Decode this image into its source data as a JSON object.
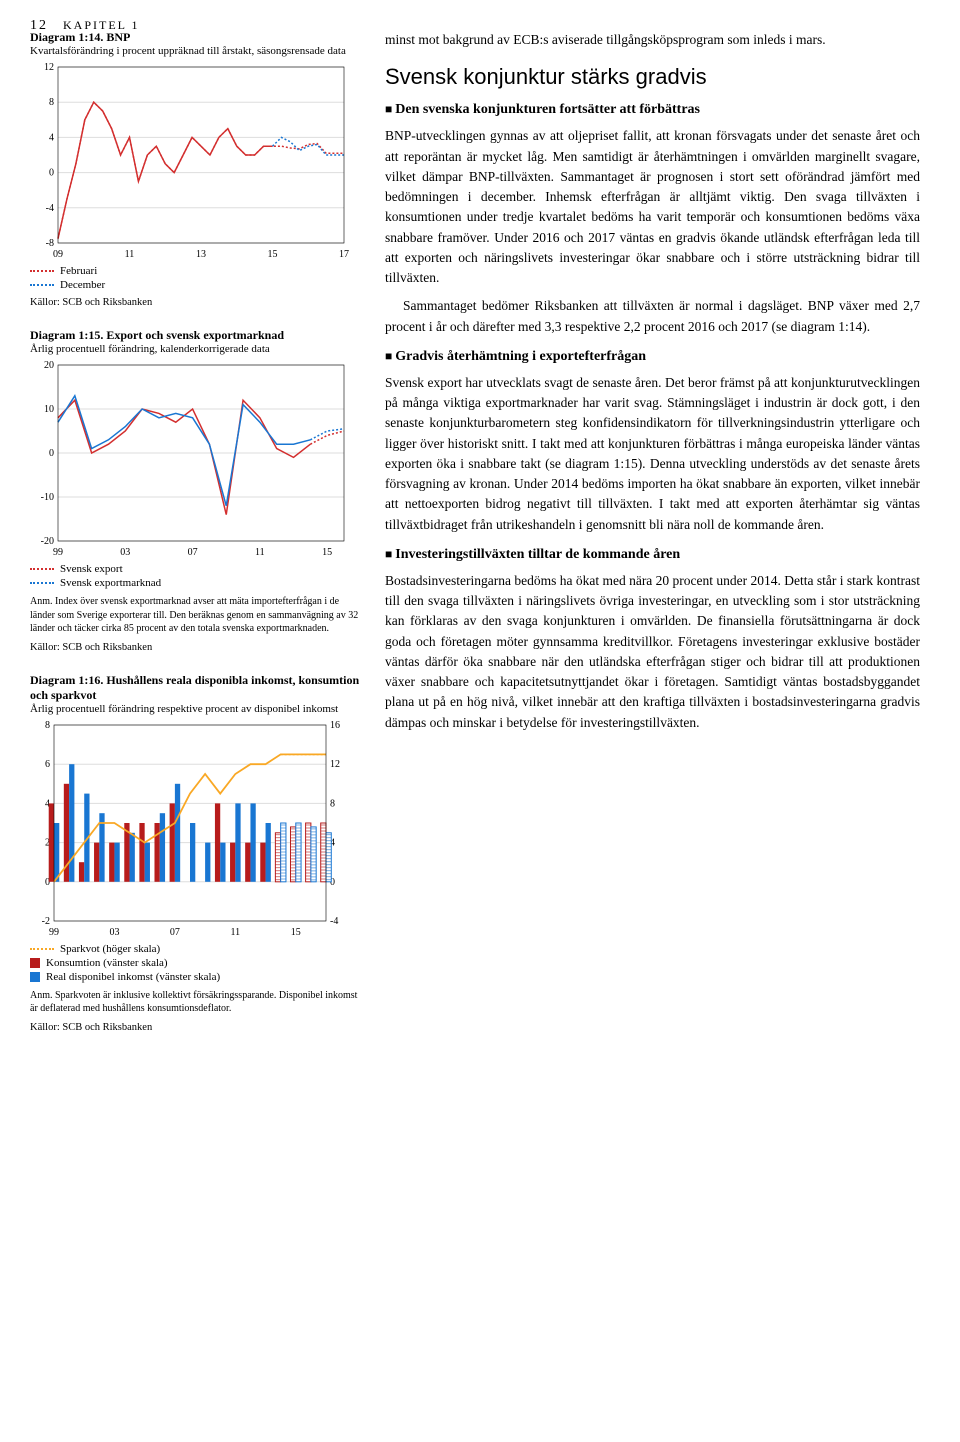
{
  "header": {
    "page_number": "12",
    "chapter": "KAPITEL 1"
  },
  "diagram_114": {
    "title": "Diagram 1:14. BNP",
    "subtitle": "Kvartalsförändring i procent uppräknad till årstakt, säsongsrensade data",
    "type": "line",
    "ylim": [
      -8,
      12
    ],
    "ytick_step": 4,
    "yticks": [
      -8,
      -4,
      0,
      4,
      8,
      12
    ],
    "xlim": [
      "09",
      "17"
    ],
    "xticks": [
      "09",
      "11",
      "13",
      "15",
      "17"
    ],
    "series": [
      {
        "name": "Februari",
        "color": "#d32f2f",
        "style": "dotted",
        "x": [
          0,
          1,
          2,
          3,
          4,
          5,
          6,
          7,
          8,
          9,
          10,
          11,
          12,
          13,
          14,
          15,
          16,
          17,
          18,
          19,
          20,
          21,
          22,
          23,
          24,
          25,
          26,
          27,
          28,
          29,
          30,
          31,
          32
        ],
        "y": [
          -7.5,
          -3,
          1,
          6,
          8,
          7,
          5,
          2,
          4,
          -1,
          2,
          3,
          1,
          0,
          2,
          4,
          3,
          2,
          4,
          5,
          3,
          2,
          2,
          3,
          3,
          3,
          2.8,
          2.7,
          3.2,
          3.3,
          2.2,
          2.2,
          2.2
        ]
      },
      {
        "name": "December",
        "color": "#1976d2",
        "style": "dotted",
        "x": [
          24,
          25,
          26,
          27,
          28,
          29,
          30,
          31,
          32
        ],
        "y": [
          3,
          4,
          3.5,
          2.5,
          3,
          3.2,
          2,
          2,
          2
        ]
      }
    ],
    "solid_history": {
      "color": "#d32f2f",
      "x": [
        0,
        1,
        2,
        3,
        4,
        5,
        6,
        7,
        8,
        9,
        10,
        11,
        12,
        13,
        14,
        15,
        16,
        17,
        18,
        19,
        20,
        21,
        22,
        23,
        24
      ],
      "y": [
        -7.5,
        -3,
        1,
        6,
        8,
        7,
        5,
        2,
        4,
        -1,
        2,
        3,
        1,
        0,
        2,
        4,
        3,
        2,
        4,
        5,
        3,
        2,
        2,
        3,
        3
      ]
    },
    "legend": [
      {
        "label": "Februari",
        "color": "#d32f2f"
      },
      {
        "label": "December",
        "color": "#1976d2"
      }
    ],
    "sources": "Källor: SCB och Riksbanken",
    "grid_color": "#dddddd",
    "background_color": "#ffffff",
    "axis_fontsize": 10
  },
  "diagram_115": {
    "title": "Diagram 1:15. Export och svensk exportmarknad",
    "subtitle": "Årlig procentuell förändring, kalenderkorrigerade data",
    "type": "line",
    "ylim": [
      -20,
      20
    ],
    "ytick_step": 10,
    "yticks": [
      -20,
      -10,
      0,
      10,
      20
    ],
    "xlim": [
      "99",
      "15"
    ],
    "xticks": [
      "99",
      "03",
      "07",
      "11",
      "15"
    ],
    "series": [
      {
        "name": "Svensk export",
        "color": "#d32f2f",
        "x": [
          0,
          1,
          2,
          3,
          4,
          5,
          6,
          7,
          8,
          9,
          10,
          11,
          12,
          13,
          14,
          15,
          16,
          17
        ],
        "y": [
          8,
          12,
          0,
          2,
          5,
          10,
          9,
          7,
          10,
          2,
          -14,
          12,
          8,
          1,
          -1,
          2,
          4,
          5
        ]
      },
      {
        "name": "Svensk exportmarknad",
        "color": "#1976d2",
        "x": [
          0,
          1,
          2,
          3,
          4,
          5,
          6,
          7,
          8,
          9,
          10,
          11,
          12,
          13,
          14,
          15,
          16,
          17
        ],
        "y": [
          7,
          13,
          1,
          3,
          6,
          10,
          8,
          9,
          8,
          2,
          -12,
          11,
          7,
          2,
          2,
          3,
          5,
          5.5
        ]
      }
    ],
    "forecast_start_x": 15,
    "legend": [
      {
        "label": "Svensk export",
        "color": "#d32f2f"
      },
      {
        "label": "Svensk exportmarknad",
        "color": "#1976d2"
      }
    ],
    "anm": "Anm. Index över svensk exportmarknad avser att mäta importefterfrågan i de länder som Sverige exporterar till. Den beräknas genom en sammanvägning av 32 länder och täcker cirka 85 procent av den totala svenska exportmarknaden.",
    "sources": "Källor: SCB och Riksbanken",
    "grid_color": "#dddddd",
    "axis_fontsize": 10
  },
  "diagram_116": {
    "title": "Diagram 1:16. Hushållens reala disponibla inkomst, konsumtion och sparkvot",
    "subtitle": "Årlig procentuell förändring respektive procent av disponibel inkomst",
    "type": "bar+line",
    "ylim_left": [
      -2,
      8
    ],
    "yticks_left": [
      -2,
      0,
      2,
      4,
      6,
      8
    ],
    "ylim_right": [
      -4,
      16
    ],
    "yticks_right": [
      -4,
      0,
      4,
      8,
      12,
      16
    ],
    "xlim": [
      "99",
      "15"
    ],
    "xticks": [
      "99",
      "03",
      "07",
      "11",
      "15"
    ],
    "bars": {
      "konsumtion": {
        "color": "#b71c1c",
        "x": [
          0,
          1,
          2,
          3,
          4,
          5,
          6,
          7,
          8,
          9,
          10,
          11,
          12,
          13,
          14,
          15,
          16,
          17,
          18
        ],
        "y": [
          4,
          5,
          1,
          2,
          2,
          3,
          3,
          3,
          4,
          0,
          0,
          4,
          2,
          2,
          2,
          2.5,
          2.8,
          3,
          3
        ]
      },
      "real_inkomst": {
        "color": "#1976d2",
        "x": [
          0,
          1,
          2,
          3,
          4,
          5,
          6,
          7,
          8,
          9,
          10,
          11,
          12,
          13,
          14,
          15,
          16,
          17,
          18
        ],
        "y": [
          3,
          6,
          4.5,
          3.5,
          2,
          2.5,
          2,
          3.5,
          5,
          3,
          2,
          2,
          4,
          4,
          3,
          3,
          3,
          2.8,
          2.5
        ]
      }
    },
    "bars_forecast_from_x": 15,
    "line_sparkvot": {
      "color": "#f9a825",
      "x": [
        0,
        1,
        2,
        3,
        4,
        5,
        6,
        7,
        8,
        9,
        10,
        11,
        12,
        13,
        14,
        15,
        16,
        17,
        18
      ],
      "y": [
        0,
        2,
        4,
        6,
        6,
        5,
        4,
        5,
        6,
        9,
        11,
        9,
        11,
        12,
        12,
        13,
        13,
        13,
        13
      ]
    },
    "legend": [
      {
        "label": "Sparkvot (höger skala)",
        "color": "#f9a825",
        "type": "dots"
      },
      {
        "label": "Konsumtion (vänster skala)",
        "color": "#b71c1c",
        "type": "box"
      },
      {
        "label": "Real disponibel inkomst (vänster skala)",
        "color": "#1976d2",
        "type": "box"
      }
    ],
    "anm": "Anm. Sparkvoten är inklusive kollektivt försäkringssparande. Disponibel inkomst är deflaterad med hushållens konsumtionsdeflator.",
    "sources": "Källor: SCB och Riksbanken",
    "grid_color": "#dddddd",
    "axis_fontsize": 10
  },
  "body": {
    "para_intro": "minst mot bakgrund av ECB:s aviserade tillgångsköpsprogram som inleds i mars.",
    "h2": "Svensk konjunktur stärks gradvis",
    "h3_1": "Den svenska konjunkturen fortsätter att förbättras",
    "para_1a": "BNP-utvecklingen gynnas av att oljepriset fallit, att kronan försvagats under det senaste året och att reporäntan är mycket låg. Men samtidigt är återhämtningen i omvärlden marginellt svagare, vilket dämpar BNP-tillväxten. Sammantaget är prognosen i stort sett oförändrad jämfört med bedömningen i december. Inhemsk efterfrågan är alltjämt viktig. Den svaga tillväxten i konsumtionen under tredje kvartalet bedöms ha varit temporär och konsumtionen bedöms växa snabbare framöver. Under 2016 och 2017 väntas en gradvis ökande utländsk efterfrågan leda till att exporten och näringslivets investeringar ökar snabbare och i större utsträckning bidrar till tillväxten.",
    "para_1b": "Sammantaget bedömer Riksbanken att tillväxten är normal i dagsläget. BNP växer med 2,7 procent i år och därefter med 3,3 respektive 2,2 procent 2016 och 2017 (se diagram 1:14).",
    "h3_2": "Gradvis återhämtning i exportefterfrågan",
    "para_2": "Svensk export har utvecklats svagt de senaste åren. Det beror främst på att konjunkturutvecklingen på många viktiga exportmarknader har varit svag. Stämningsläget i industrin är dock gott, i den senaste konjunkturbarometern steg konfidensindikatorn för tillverkningsindustrin ytterligare och ligger över historiskt snitt. I takt med att konjunkturen förbättras i många europeiska länder väntas exporten öka i snabbare takt (se diagram 1:15). Denna utveckling understöds av det senaste årets försvagning av kronan. Under 2014 bedöms importen ha ökat snabbare än exporten, vilket innebär att nettoexporten bidrog negativt till tillväxten. I takt med att exporten återhämtar sig väntas tillväxtbidraget från utrikeshandeln i genomsnitt bli nära noll de kommande åren.",
    "h3_3": "Investeringstillväxten tilltar de kommande åren",
    "para_3": "Bostadsinvesteringarna bedöms ha ökat med nära 20 procent under 2014. Detta står i stark kontrast till den svaga tillväxten i näringslivets övriga investeringar, en utveckling som i stor utsträckning kan förklaras av den svaga konjunkturen i omvärlden. De finansiella förutsättningarna är dock goda och företagen möter gynnsamma kreditvillkor. Företagens investeringar exklusive bostäder väntas därför öka snabbare när den utländska efterfrågan stiger och bidrar till att produktionen växer snabbare och kapacitetsutnyttjandet ökar i företagen. Samtidigt väntas bostadsbyggandet plana ut på en hög nivå, vilket innebär att den kraftiga tillväxten i bostadsinvesteringarna gradvis dämpas och minskar i betydelse för investeringstillväxten."
  }
}
